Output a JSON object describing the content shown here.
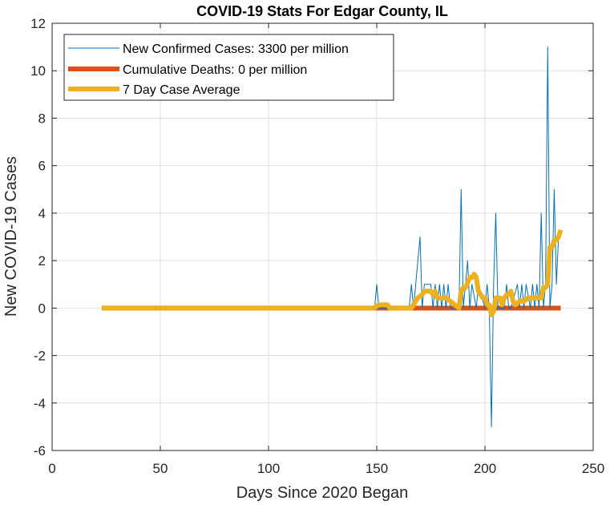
{
  "chart_data": {
    "type": "line",
    "title": "COVID-19 Stats For Edgar County, IL",
    "xlabel": "Days Since 2020 Began",
    "ylabel": "New COVID-19 Cases",
    "xlim": [
      0,
      250
    ],
    "ylim": [
      -6,
      12
    ],
    "xticks": [
      0,
      50,
      100,
      150,
      200,
      250
    ],
    "yticks": [
      -6,
      -4,
      -2,
      0,
      2,
      4,
      6,
      8,
      10,
      12
    ],
    "grid": true,
    "legend_placement": "top-left",
    "series": [
      {
        "name": "New Confirmed Cases: 3300 per million",
        "color": "#0072BD",
        "x": [
          23,
          149,
          150,
          151,
          165,
          166,
          167,
          170,
          171,
          172,
          175,
          176,
          177,
          178,
          179,
          180,
          181,
          182,
          183,
          184,
          185,
          188,
          189,
          190,
          192,
          193,
          194,
          196,
          197,
          200,
          201,
          202,
          203,
          204,
          205,
          206,
          207,
          209,
          210,
          211,
          212,
          215,
          216,
          217,
          218,
          219,
          221,
          222,
          223,
          224,
          225,
          226,
          227,
          228,
          229,
          230,
          231,
          232,
          233,
          234,
          235
        ],
        "y": [
          0,
          0,
          1,
          0,
          0,
          1,
          0,
          3,
          0,
          1,
          1,
          0,
          1,
          0,
          1,
          0,
          1,
          0,
          1,
          0,
          0,
          0,
          5,
          0,
          2,
          0,
          1,
          0,
          1,
          0,
          1,
          0,
          -5,
          1,
          4,
          0,
          0,
          0,
          1,
          0,
          0,
          1,
          0,
          1,
          0,
          1,
          0,
          1,
          0,
          1,
          0,
          4,
          0,
          1,
          11,
          0,
          1,
          5,
          1,
          3,
          3
        ]
      },
      {
        "name": "Cumulative Deaths: 0 per million",
        "color": "#D95319",
        "x": [
          23,
          235
        ],
        "y": [
          0,
          0
        ]
      },
      {
        "name": "7 Day Case Average",
        "color": "#EDB120",
        "x": [
          23,
          149,
          150,
          152,
          155,
          156,
          166,
          167,
          169,
          171,
          172,
          175,
          176,
          177,
          178,
          180,
          182,
          184,
          186,
          188,
          189,
          190,
          191,
          193,
          194,
          195,
          196,
          197,
          198,
          199,
          200,
          201,
          202,
          203,
          204,
          205,
          206,
          207,
          208,
          209,
          210,
          211,
          212,
          213,
          214,
          216,
          218,
          220,
          222,
          224,
          226,
          227,
          228,
          229,
          230,
          231,
          232,
          233,
          234,
          235
        ],
        "y": [
          0,
          0,
          0.1,
          0.14,
          0.14,
          0,
          0,
          0.14,
          0.43,
          0.57,
          0.71,
          0.71,
          0.57,
          0.71,
          0.43,
          0.43,
          0.43,
          0.29,
          0.14,
          0,
          0.71,
          0.86,
          0.86,
          1.29,
          1.29,
          1.43,
          1.29,
          0.71,
          0.57,
          0.43,
          0.43,
          0.14,
          0.14,
          -0.29,
          -0.14,
          0.43,
          0.43,
          0.43,
          0.14,
          0.43,
          0.57,
          0.57,
          0.71,
          0.29,
          0.14,
          0.29,
          0.29,
          0.43,
          0.43,
          0.43,
          0.43,
          0.86,
          0.86,
          1,
          2.57,
          2.57,
          2.86,
          2.86,
          3,
          3.29
        ]
      }
    ]
  }
}
